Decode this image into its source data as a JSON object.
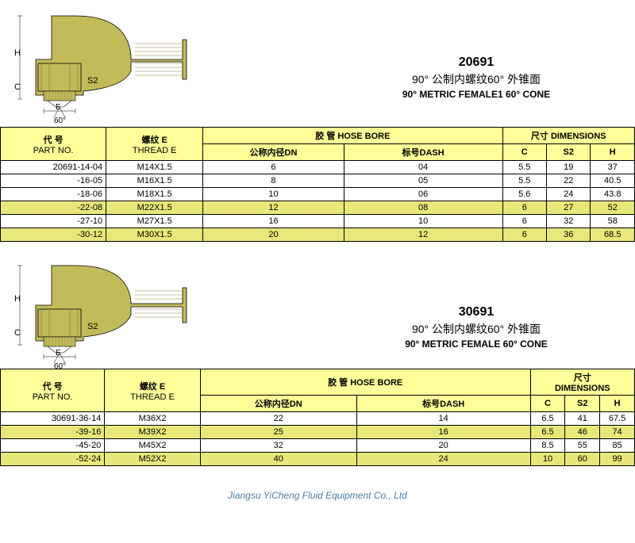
{
  "colors": {
    "header_bg": "#ffff99",
    "highlight_bg": "#e8e87a",
    "border": "#000000",
    "footer": "#4a7ba6",
    "fitting": "#c2bb5a",
    "fitting_dark": "#8a8040"
  },
  "headers": {
    "part_cn": "代  号",
    "part_en": "PART NO.",
    "thread_cn": "螺纹  E",
    "thread_en": "THREAD E",
    "hose_cn": "胶 管",
    "hose_en": "HOSE BORE",
    "dn_cn": "公称内径DN",
    "dash_cn": "标号DASH",
    "dim_cn": "尺寸",
    "dim_en": "DIMENSIONS",
    "c": "C",
    "s2": "S2",
    "h": "H"
  },
  "section1": {
    "code": "20691",
    "title_cn": "90° 公制内螺纹60° 外锥面",
    "title_en": "90° METRIC FEMALE1 60° CONE",
    "labels": {
      "H": "H",
      "C": "C",
      "E": "E",
      "S2": "S2",
      "ang": "60°"
    },
    "rows": [
      {
        "part": "20691-14-04",
        "thread": "M14X1.5",
        "dn": "6",
        "dash": "04",
        "c": "5.5",
        "s2": "19",
        "h": "37",
        "hl": false
      },
      {
        "part": "-16-05",
        "thread": "M16X1.5",
        "dn": "8",
        "dash": "05",
        "c": "5.5",
        "s2": "22",
        "h": "40.5",
        "hl": false
      },
      {
        "part": "-18-06",
        "thread": "M18X1.5",
        "dn": "10",
        "dash": "06",
        "c": "5.6",
        "s2": "24",
        "h": "43.8",
        "hl": false
      },
      {
        "part": "-22-08",
        "thread": "M22X1.5",
        "dn": "12",
        "dash": "08",
        "c": "6",
        "s2": "27",
        "h": "52",
        "hl": true
      },
      {
        "part": "-27-10",
        "thread": "M27X1.5",
        "dn": "16",
        "dash": "10",
        "c": "6",
        "s2": "32",
        "h": "58",
        "hl": false
      },
      {
        "part": "-30-12",
        "thread": "M30X1.5",
        "dn": "20",
        "dash": "12",
        "c": "6",
        "s2": "36",
        "h": "68.5",
        "hl": true
      }
    ]
  },
  "section2": {
    "code": "30691",
    "title_cn": "90° 公制内螺纹60° 外锥面",
    "title_en": "90° METRIC FEMALE 60° CONE",
    "labels": {
      "H": "H",
      "C": "C",
      "E": "E",
      "S2": "S2",
      "ang": "60°"
    },
    "rows": [
      {
        "part": "30691-36-14",
        "thread": "M36X2",
        "dn": "22",
        "dash": "14",
        "c": "6.5",
        "s2": "41",
        "h": "67.5",
        "hl": false
      },
      {
        "part": "-39-16",
        "thread": "M39X2",
        "dn": "25",
        "dash": "16",
        "c": "6.5",
        "s2": "46",
        "h": "74",
        "hl": true
      },
      {
        "part": "-45-20",
        "thread": "M45X2",
        "dn": "32",
        "dash": "20",
        "c": "8.5",
        "s2": "55",
        "h": "85",
        "hl": false
      },
      {
        "part": "-52-24",
        "thread": "M52X2",
        "dn": "40",
        "dash": "24",
        "c": "10",
        "s2": "60",
        "h": "99",
        "hl": true
      }
    ]
  },
  "footer": "Jiangsu YiCheng Fluid Equipment Co., Ltd"
}
